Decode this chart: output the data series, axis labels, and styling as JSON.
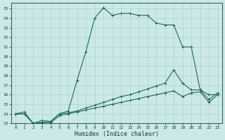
{
  "xlabel": "Humidex (Indice chaleur)",
  "bg_color": "#cce8e8",
  "grid_color": "#aad4d4",
  "line_color": "#1a6b5a",
  "xlim": [
    -0.5,
    23.5
  ],
  "ylim": [
    13,
    25.6
  ],
  "xticks": [
    0,
    1,
    2,
    3,
    4,
    5,
    6,
    7,
    8,
    9,
    10,
    11,
    12,
    13,
    14,
    15,
    16,
    17,
    18,
    19,
    20,
    21,
    22,
    23
  ],
  "yticks": [
    13,
    14,
    15,
    16,
    17,
    18,
    19,
    20,
    21,
    22,
    23,
    24,
    25
  ],
  "series0": [
    14.0,
    14.2,
    13.0,
    13.3,
    13.2,
    14.0,
    14.3,
    17.5,
    20.5,
    24.0,
    25.1,
    24.3,
    24.5,
    24.5,
    24.3,
    24.3,
    23.5,
    23.3,
    23.3,
    21.0,
    21.0,
    16.5,
    16.0,
    16.0
  ],
  "series1": [
    14.0,
    14.0,
    13.0,
    13.1,
    13.2,
    14.0,
    14.1,
    14.3,
    14.6,
    14.9,
    15.2,
    15.5,
    15.8,
    16.0,
    16.3,
    16.6,
    16.9,
    17.2,
    18.6,
    17.2,
    16.5,
    16.5,
    15.5,
    16.2
  ],
  "series2": [
    14.0,
    14.0,
    13.0,
    13.1,
    13.1,
    13.8,
    14.0,
    14.2,
    14.4,
    14.6,
    14.8,
    15.0,
    15.2,
    15.4,
    15.6,
    15.8,
    16.0,
    16.2,
    16.4,
    15.8,
    16.2,
    16.3,
    15.2,
    16.0
  ]
}
